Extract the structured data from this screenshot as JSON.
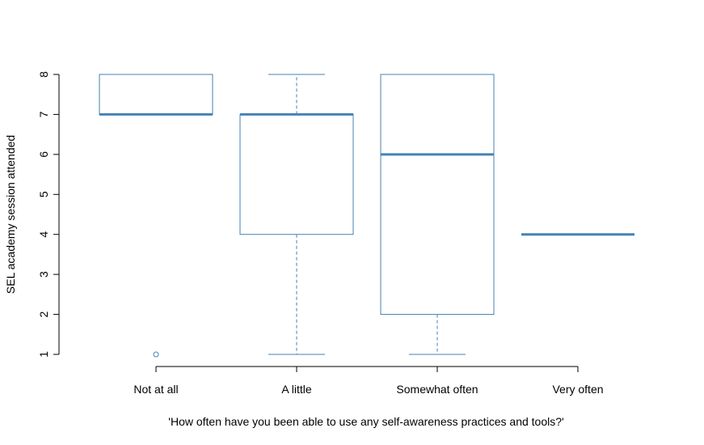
{
  "chart_data": {
    "type": "boxplot",
    "title": "",
    "xlabel": "'How often have you been able to use any self-awareness practices and tools?'",
    "ylabel": "SEL academy session attended",
    "ylim": [
      1,
      8
    ],
    "y_ticks": [
      "1",
      "2",
      "3",
      "4",
      "5",
      "6",
      "7",
      "8"
    ],
    "categories": [
      "Not at all",
      "A little",
      "Somewhat often",
      "Very often"
    ],
    "boxes": [
      {
        "category": "Not at all",
        "whisker_low": 7,
        "q1": 7,
        "median": 7,
        "q3": 8,
        "whisker_high": 8,
        "outliers": [
          1
        ]
      },
      {
        "category": "A little",
        "whisker_low": 1,
        "q1": 4,
        "median": 7,
        "q3": 7,
        "whisker_high": 8,
        "outliers": []
      },
      {
        "category": "Somewhat often",
        "whisker_low": 1,
        "q1": 2,
        "median": 6,
        "q3": 8,
        "whisker_high": 8,
        "outliers": []
      },
      {
        "category": "Very often",
        "whisker_low": 4,
        "q1": 4,
        "median": 4,
        "q3": 4,
        "whisker_high": 4,
        "outliers": []
      }
    ],
    "color": "#4682b4",
    "grid": false,
    "legend": "none"
  }
}
